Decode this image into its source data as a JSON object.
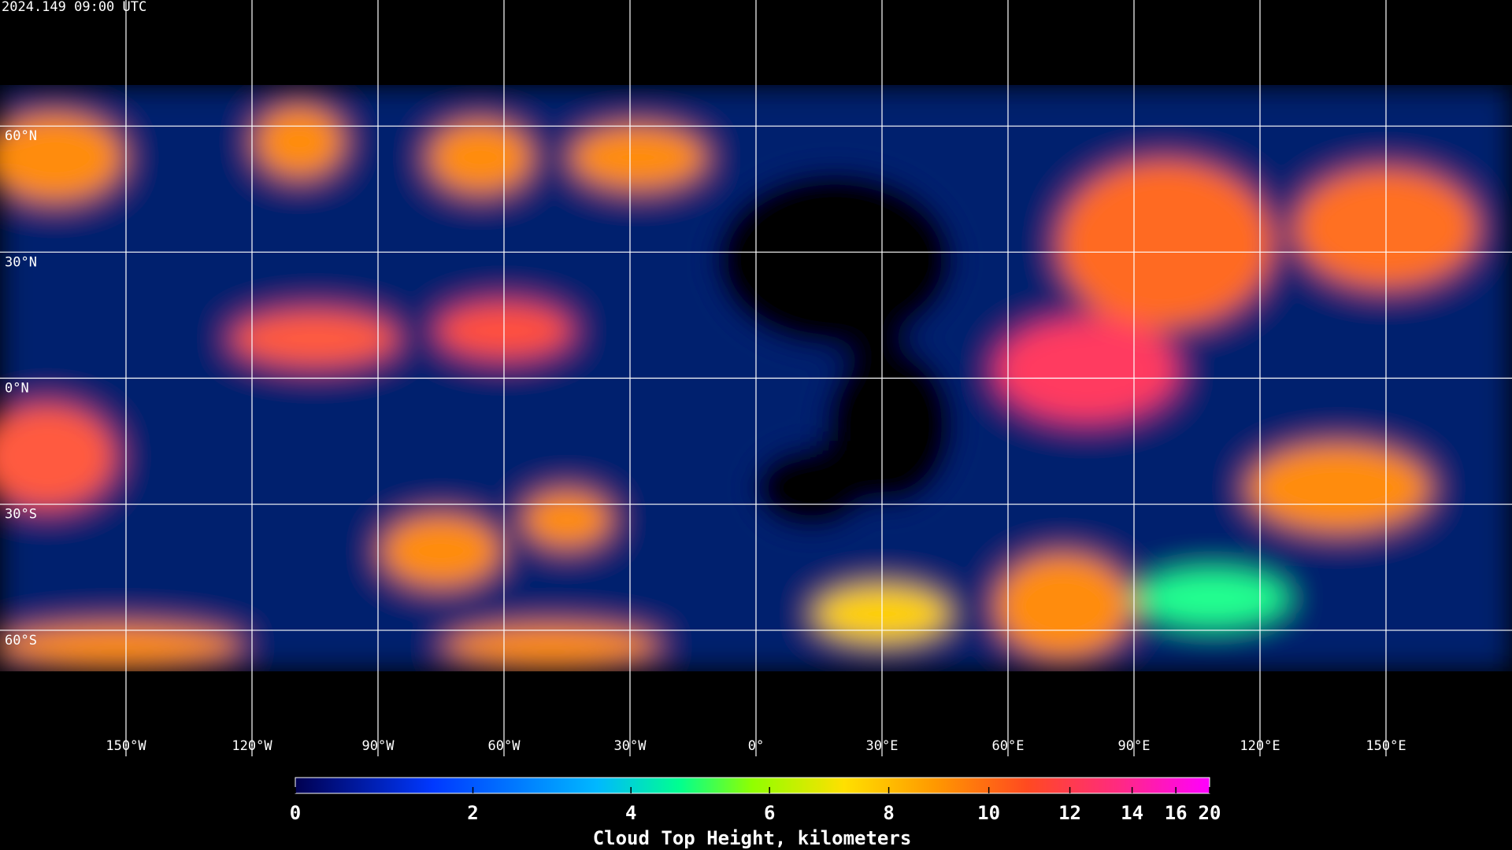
{
  "header": {
    "timestamp": "2024.149 09:00 UTC"
  },
  "map": {
    "latitudes": [
      {
        "value": 60,
        "label": "60°N"
      },
      {
        "value": 30,
        "label": "30°N"
      },
      {
        "value": 0,
        "label": "0°N"
      },
      {
        "value": -30,
        "label": "30°S"
      },
      {
        "value": -60,
        "label": "60°S"
      }
    ],
    "longitudes": [
      {
        "value": -150,
        "label": "150°W"
      },
      {
        "value": -120,
        "label": "120°W"
      },
      {
        "value": -90,
        "label": "90°W"
      },
      {
        "value": -60,
        "label": "60°W"
      },
      {
        "value": -30,
        "label": "30°W"
      },
      {
        "value": 0,
        "label": "0°"
      },
      {
        "value": 30,
        "label": "30°E"
      },
      {
        "value": 60,
        "label": "60°E"
      },
      {
        "value": 90,
        "label": "90°E"
      },
      {
        "value": 120,
        "label": "120°E"
      },
      {
        "value": 150,
        "label": "150°E"
      }
    ]
  },
  "colorbar": {
    "title": "Cloud Top Height, kilometers",
    "range": [
      0,
      20
    ],
    "ticks": [
      0,
      2,
      4,
      6,
      8,
      10,
      12,
      14,
      16,
      20
    ]
  }
}
